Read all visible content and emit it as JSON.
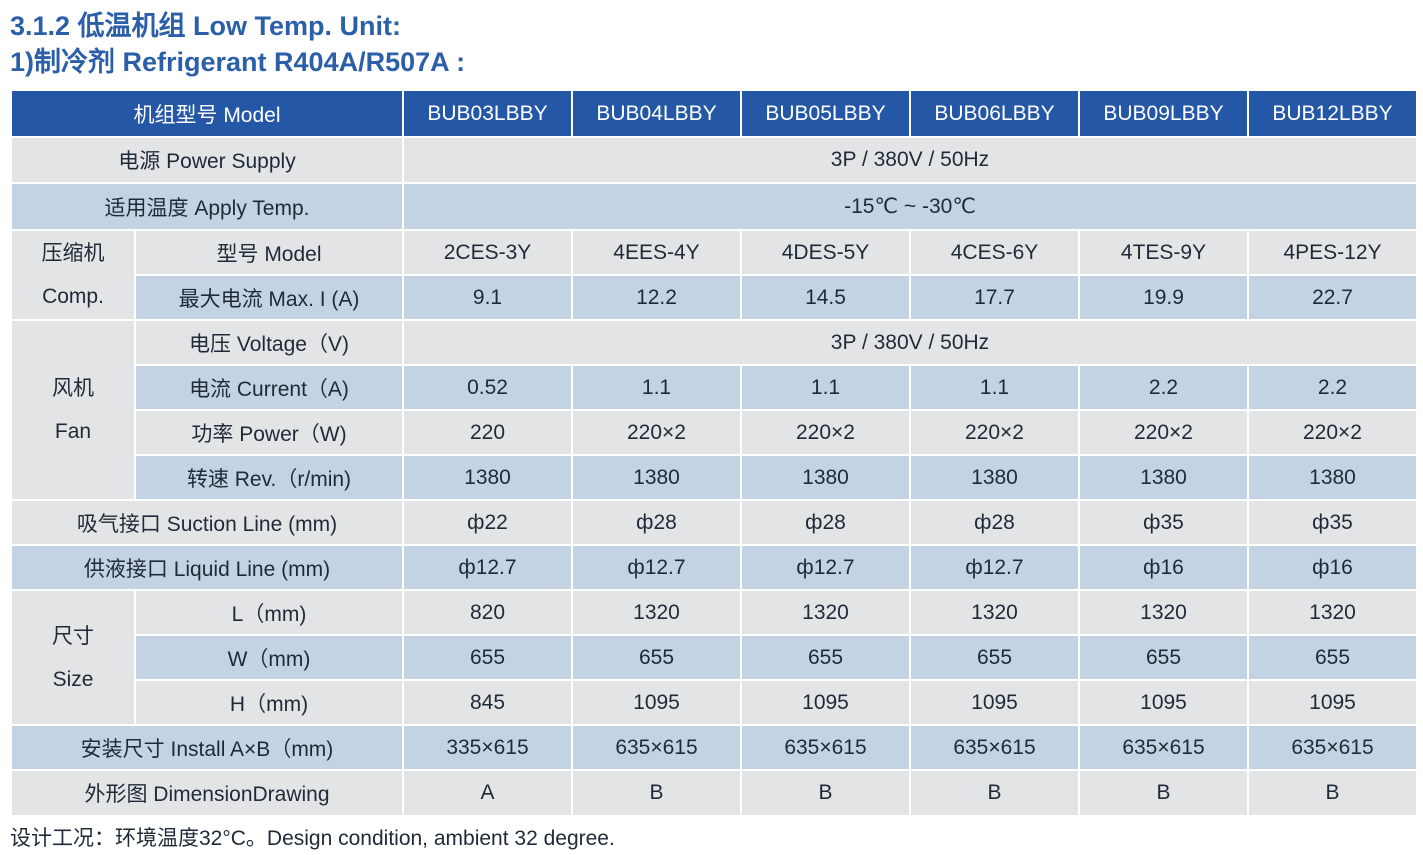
{
  "title_line1": "3.1.2 低温机组 Low Temp. Unit:",
  "title_line2": "1)制冷剂 Refrigerant R404A/R507A :",
  "header": {
    "label": "机组型号 Model",
    "models": [
      "BUB03LBBY",
      "BUB04LBBY",
      "BUB05LBBY",
      "BUB06LBBY",
      "BUB09LBBY",
      "BUB12LBBY"
    ]
  },
  "power_supply": {
    "label": "电源 Power Supply",
    "value": "3P / 380V / 50Hz"
  },
  "apply_temp": {
    "label": "适用温度 Apply Temp.",
    "value": "-15℃ ~ -30℃"
  },
  "comp": {
    "group_cn": "压缩机",
    "group_en": "Comp.",
    "model": {
      "label": "型号 Model",
      "values": [
        "2CES-3Y",
        "4EES-4Y",
        "4DES-5Y",
        "4CES-6Y",
        "4TES-9Y",
        "4PES-12Y"
      ]
    },
    "max_current": {
      "label": "最大电流 Max. I (A)",
      "values": [
        "9.1",
        "12.2",
        "14.5",
        "17.7",
        "19.9",
        "22.7"
      ]
    }
  },
  "fan": {
    "group_cn": "风机",
    "group_en": "Fan",
    "voltage": {
      "label": "电压 Voltage（V)",
      "value": "3P / 380V / 50Hz"
    },
    "current": {
      "label": "电流 Current（A)",
      "values": [
        "0.52",
        "1.1",
        "1.1",
        "1.1",
        "2.2",
        "2.2"
      ]
    },
    "power": {
      "label": "功率 Power（W)",
      "values": [
        "220",
        "220×2",
        "220×2",
        "220×2",
        "220×2",
        "220×2"
      ]
    },
    "rev": {
      "label": "转速 Rev.（r/min)",
      "values": [
        "1380",
        "1380",
        "1380",
        "1380",
        "1380",
        "1380"
      ]
    }
  },
  "suction": {
    "label": "吸气接口 Suction Line (mm)",
    "values": [
      "ф22",
      "ф28",
      "ф28",
      "ф28",
      "ф35",
      "ф35"
    ]
  },
  "liquid": {
    "label": "供液接口 Liquid Line (mm)",
    "values": [
      "ф12.7",
      "ф12.7",
      "ф12.7",
      "ф12.7",
      "ф16",
      "ф16"
    ]
  },
  "size": {
    "group_cn": "尺寸",
    "group_en": "Size",
    "L": {
      "label": "L（mm)",
      "values": [
        "820",
        "1320",
        "1320",
        "1320",
        "1320",
        "1320"
      ]
    },
    "W": {
      "label": "W（mm)",
      "values": [
        "655",
        "655",
        "655",
        "655",
        "655",
        "655"
      ]
    },
    "H": {
      "label": "H（mm)",
      "values": [
        "845",
        "1095",
        "1095",
        "1095",
        "1095",
        "1095"
      ]
    }
  },
  "install": {
    "label": "安装尺寸  Install A×B（mm)",
    "values": [
      "335×615",
      "635×615",
      "635×615",
      "635×615",
      "635×615",
      "635×615"
    ]
  },
  "drawing": {
    "label": "外形图 DimensionDrawing",
    "values": [
      "A",
      "B",
      "B",
      "B",
      "B",
      "B"
    ]
  },
  "note": "设计工况：环境温度32°C。Design condition, ambient 32 degree."
}
